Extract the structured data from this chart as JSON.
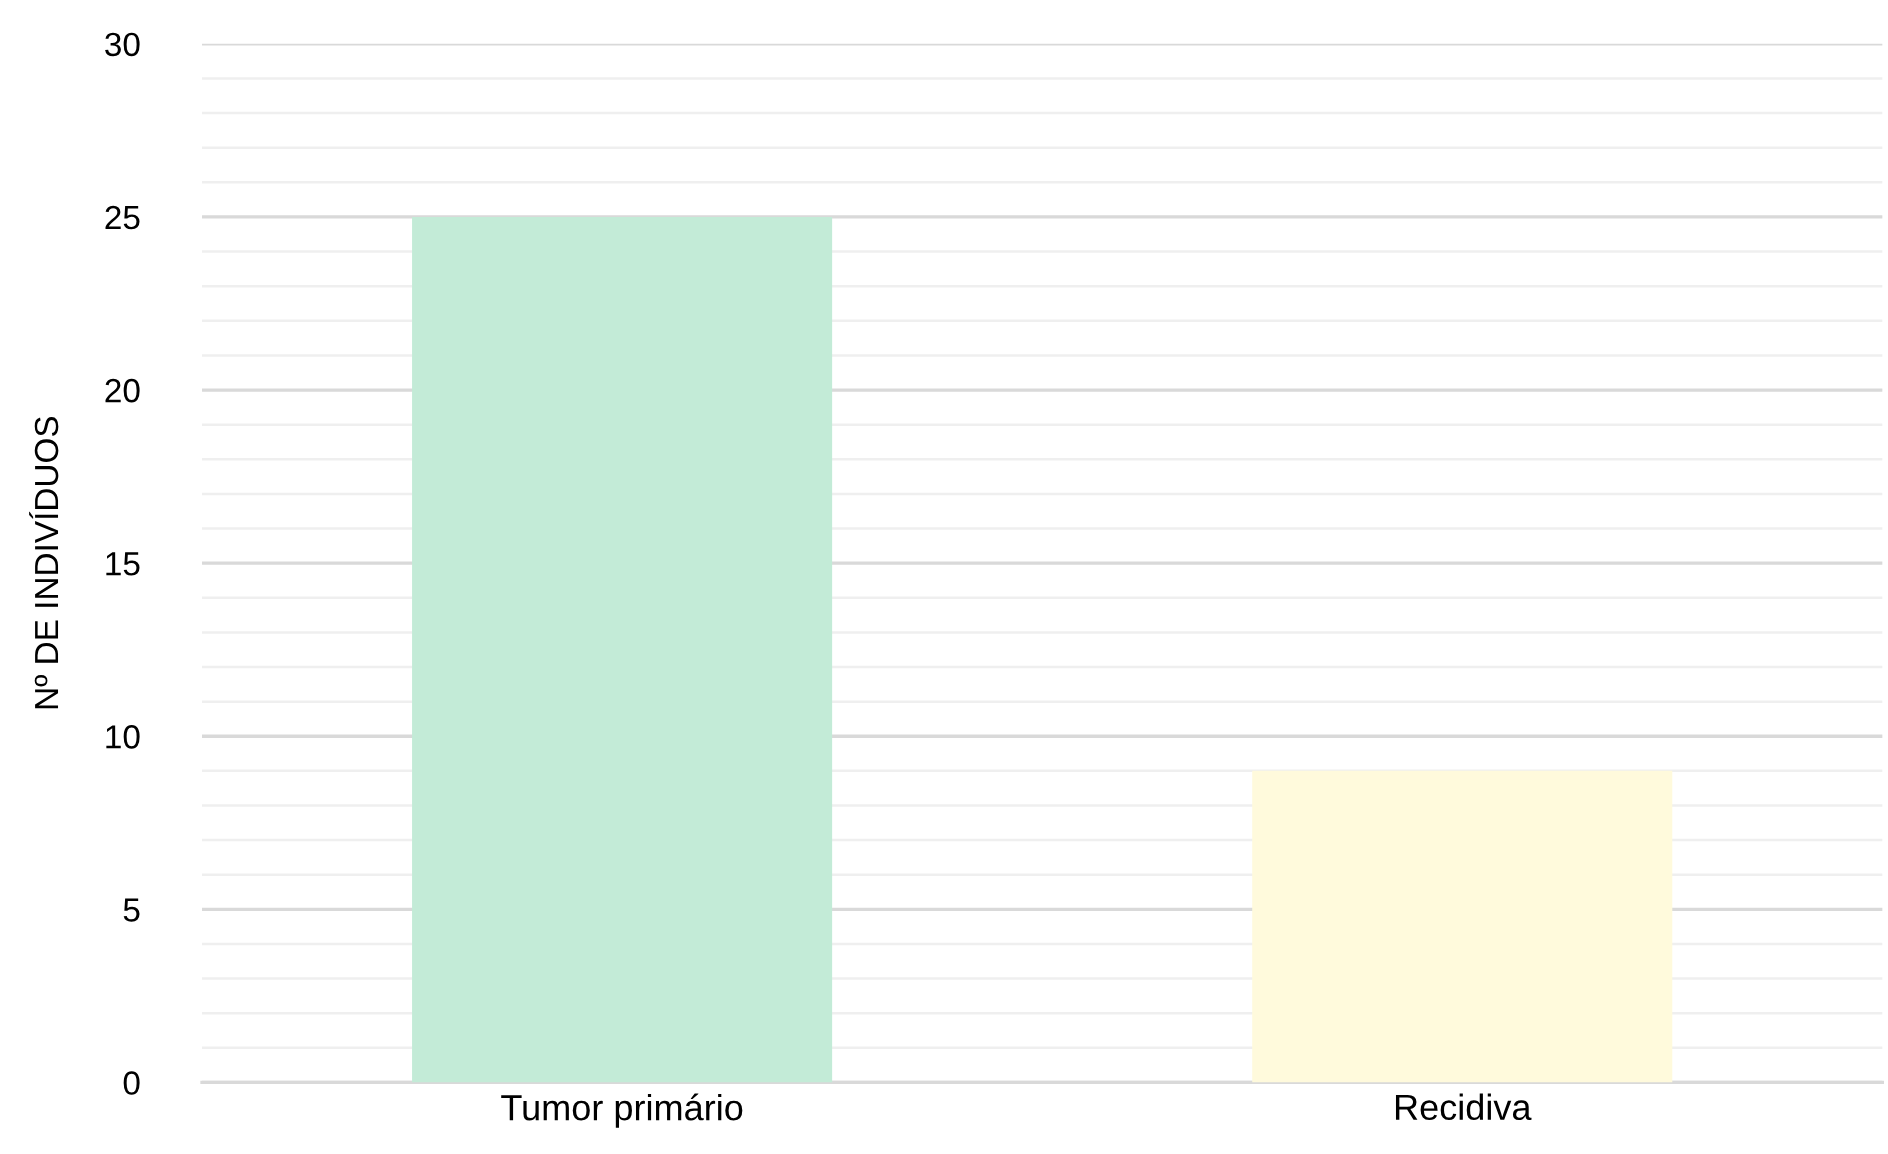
{
  "chart_data": {
    "type": "bar",
    "ylabel": "Nº DE INDIVÍDUOS",
    "categories": [
      "Tumor primário",
      "Recidiva"
    ],
    "values": [
      25,
      9
    ],
    "colors": [
      "#c3ebd7",
      "#fffadc"
    ],
    "ylim": [
      0,
      30
    ],
    "yticks": [
      0,
      {
        "value": 1,
        "label": null
      },
      {
        "value": 2,
        "label": null
      },
      {
        "value": 3,
        "label": null
      },
      {
        "value": 4,
        "label": null
      },
      5,
      {
        "value": 6,
        "label": null
      },
      {
        "value": 7,
        "label": null
      },
      {
        "value": 8,
        "label": null
      },
      {
        "value": 9,
        "label": null
      },
      10,
      {
        "value": 11,
        "label": null
      },
      {
        "value": 12,
        "label": null
      },
      {
        "value": 13,
        "label": null
      },
      {
        "value": 14,
        "label": null
      },
      15,
      {
        "value": 16,
        "label": null
      },
      {
        "value": 17,
        "label": null
      },
      {
        "value": 18,
        "label": null
      },
      {
        "value": 19,
        "label": null
      },
      20,
      {
        "value": 21,
        "label": null
      },
      {
        "value": 22,
        "label": null
      },
      {
        "value": 23,
        "label": null
      },
      {
        "value": 24,
        "label": null
      },
      25,
      {
        "value": 26,
        "label": null
      },
      {
        "value": 27,
        "label": null
      },
      {
        "value": 28,
        "label": null
      },
      {
        "value": 29,
        "label": null
      },
      30
    ],
    "grid": "y"
  }
}
